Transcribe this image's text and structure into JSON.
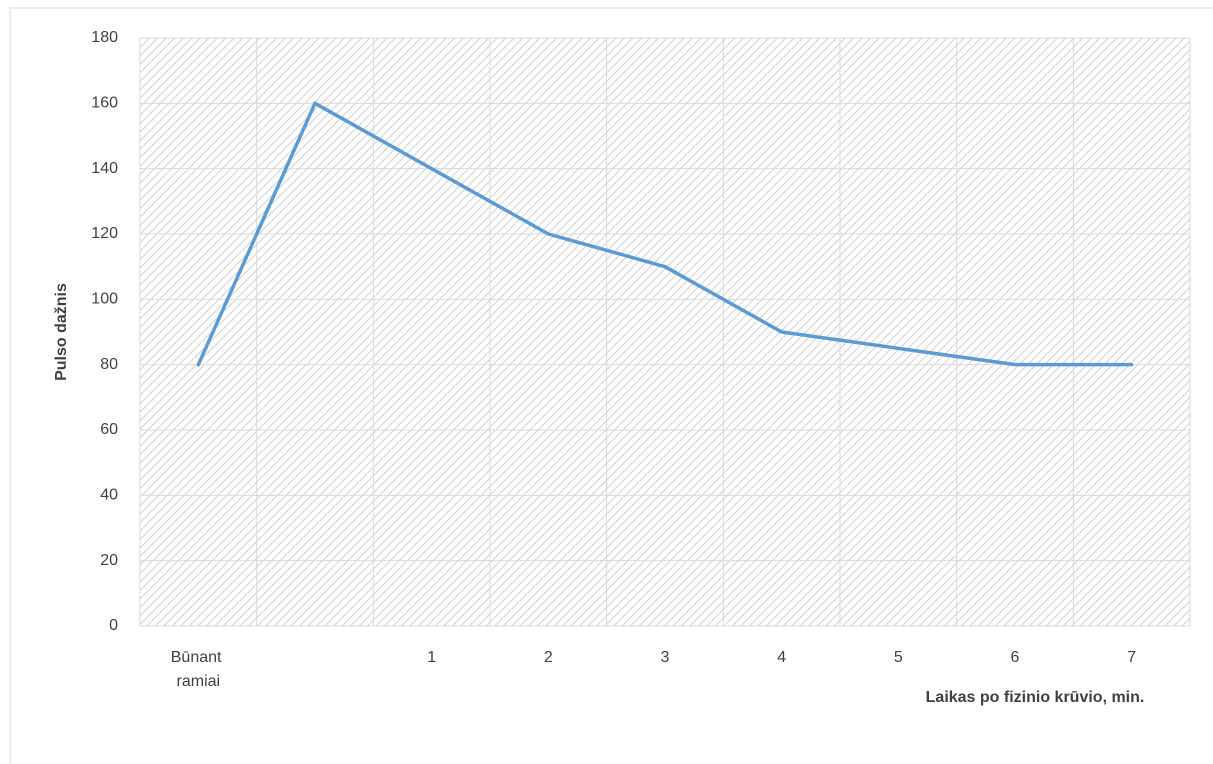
{
  "chart_data": {
    "type": "line",
    "xlabel": "Laikas po fizinio krūvio, min.",
    "ylabel": "Pulso dažnis",
    "categories": [
      "Būnant ramiai",
      null,
      "1",
      "2",
      "3",
      "4",
      "5",
      "6",
      "7"
    ],
    "series": [
      {
        "name": "Pulso dažnis",
        "color": "#5b9bd5",
        "values": [
          80,
          160,
          140,
          120,
          110,
          90,
          85,
          80,
          80
        ]
      }
    ],
    "ylim": [
      0,
      180
    ],
    "yticks": [
      0,
      20,
      40,
      60,
      80,
      100,
      120,
      140,
      160,
      180
    ],
    "grid": true
  }
}
